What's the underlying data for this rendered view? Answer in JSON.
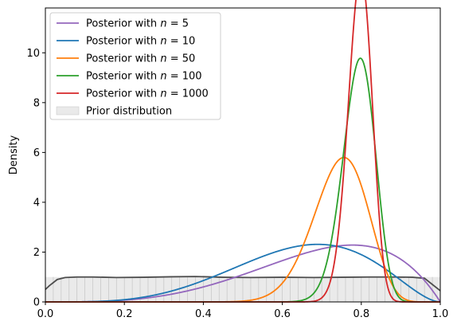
{
  "chart_data": {
    "type": "line",
    "ylabel": "Density",
    "xlim": [
      0.0,
      1.0
    ],
    "ylim": [
      0.0,
      11.8
    ],
    "x_ticks": [
      "0.0",
      "0.2",
      "0.4",
      "0.6",
      "0.8",
      "1.0"
    ],
    "y_ticks": [
      "0",
      "2",
      "4",
      "6",
      "8",
      "10"
    ],
    "grid": false,
    "legend_position": "upper-left",
    "series": [
      {
        "name": "Posterior with n = 5",
        "label_prefix": "Posterior with ",
        "label_var": "n",
        "label_suffix": " = 5",
        "color": "#9467bd",
        "distribution": "beta",
        "alpha": 4.5,
        "beta": 2.0
      },
      {
        "name": "Posterior with n = 10",
        "label_prefix": "Posterior with ",
        "label_var": "n",
        "label_suffix": " = 10",
        "color": "#1f77b4",
        "distribution": "beta",
        "alpha": 5.0,
        "beta": 2.8
      },
      {
        "name": "Posterior with n = 50",
        "label_prefix": "Posterior with ",
        "label_var": "n",
        "label_suffix": " = 50",
        "color": "#ff7f0e",
        "distribution": "beta",
        "alpha": 29.5,
        "beta": 10.2
      },
      {
        "name": "Posterior with n = 100",
        "label_prefix": "Posterior with ",
        "label_var": "n",
        "label_suffix": " = 100",
        "color": "#2ca02c",
        "distribution": "beta",
        "alpha": 77.5,
        "beta": 20.4
      },
      {
        "name": "Posterior with n = 1000",
        "label_prefix": "Posterior with ",
        "label_var": "n",
        "label_suffix": " = 1000",
        "color": "#d62728",
        "distribution": "beta",
        "alpha": 140.0,
        "beta": 36.0
      }
    ],
    "prior": {
      "name": "Prior distribution",
      "fill_color": "#d9d9d9",
      "curve_color": "#4d4d4d",
      "x": [
        0.0,
        0.01,
        0.03,
        0.05,
        0.08,
        0.12,
        0.18,
        0.25,
        0.32,
        0.38,
        0.45,
        0.52,
        0.6,
        0.68,
        0.75,
        0.82,
        0.88,
        0.93,
        0.96,
        0.98,
        1.0
      ],
      "y": [
        0.5,
        0.65,
        0.9,
        0.98,
        1.0,
        1.0,
        0.98,
        0.99,
        1.01,
        1.02,
        0.99,
        0.98,
        0.99,
        0.98,
        0.99,
        1.0,
        1.0,
        0.99,
        0.95,
        0.7,
        0.45
      ],
      "hist_value": 1.0
    }
  }
}
